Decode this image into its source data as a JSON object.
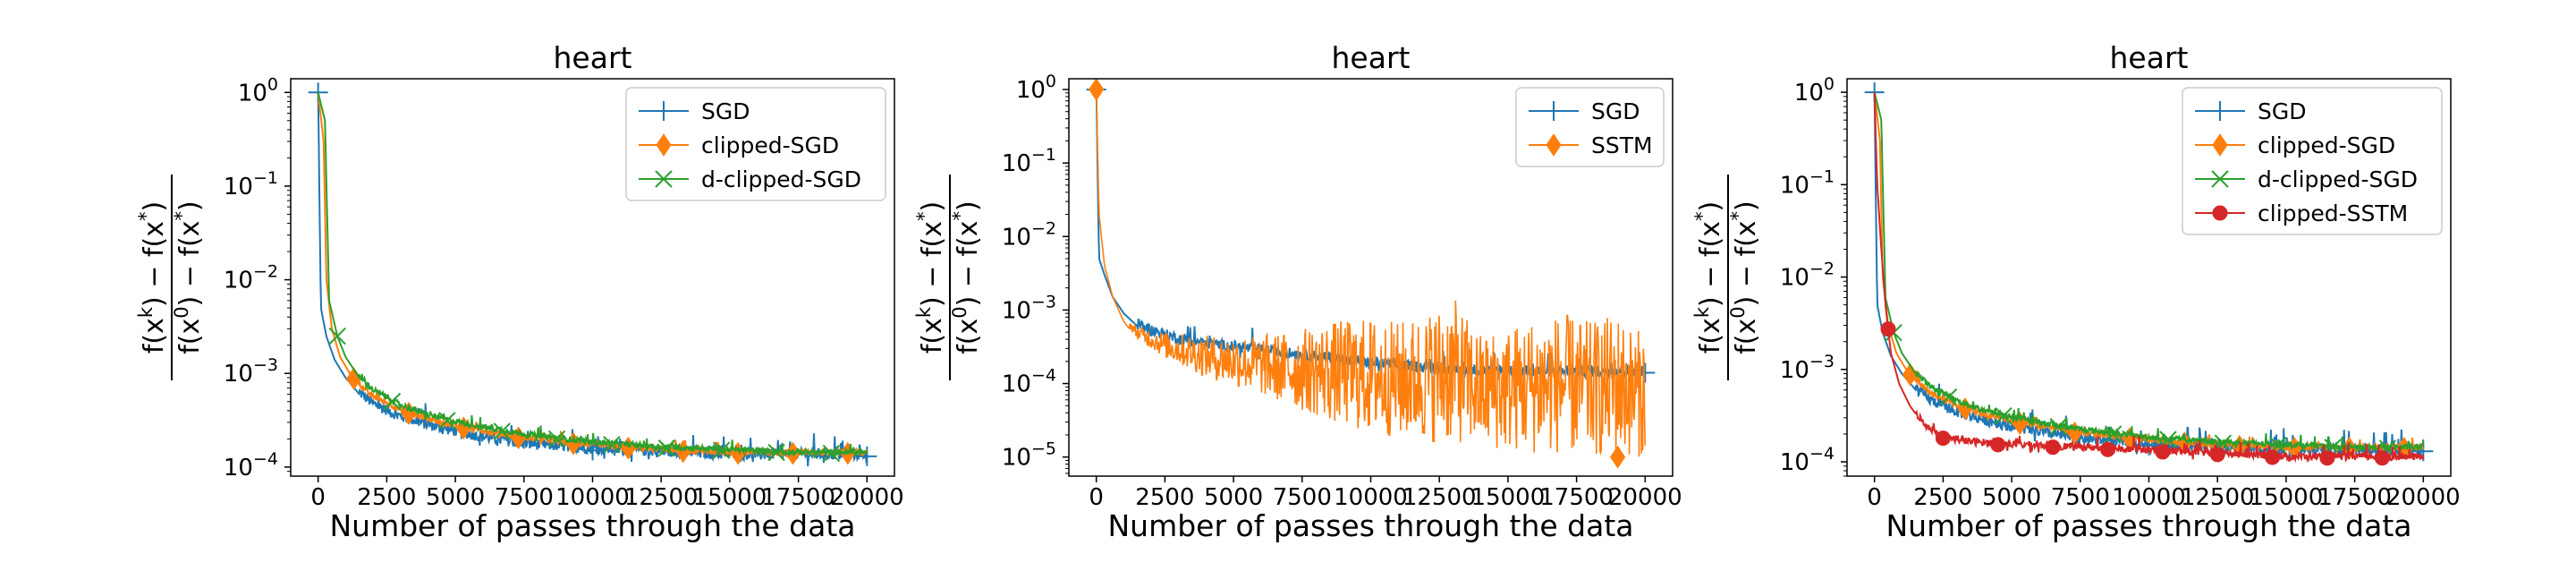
{
  "colors": {
    "SGD": "#1f77b4",
    "clipped-SGD": "#ff7f0e",
    "d-clipped-SGD": "#2ca02c",
    "SSTM": "#ff7f0e",
    "clipped-SSTM": "#d62728"
  },
  "chart_data": [
    {
      "type": "line",
      "title": "heart",
      "xlabel": "Number of passes through the data",
      "ylabel": "(f(x^k) - f(x^*)) / (f(x^0) - f(x^*))",
      "yscale": "log",
      "xlim": [
        -1000,
        21000
      ],
      "ylim": [
        8e-05,
        1.4
      ],
      "xticks": [
        0,
        2500,
        5000,
        7500,
        10000,
        12500,
        15000,
        17500,
        20000
      ],
      "xtick_labels": [
        "0",
        "2500",
        "5000",
        "7500",
        "10000",
        "12500",
        "15000",
        "17500",
        "20000"
      ],
      "yticks": [
        1,
        0.1,
        0.01,
        0.001,
        0.0001
      ],
      "ytick_labels": [
        {
          "base": "10",
          "exp": "0"
        },
        {
          "base": "10",
          "exp": "−1"
        },
        {
          "base": "10",
          "exp": "−2"
        },
        {
          "base": "10",
          "exp": "−3"
        },
        {
          "base": "10",
          "exp": "−4"
        }
      ],
      "legend_position": "top-right",
      "series": [
        {
          "name": "SGD",
          "marker": "plus",
          "noise": 0.12,
          "x": [
            0,
            100,
            300,
            600,
            1000,
            1500,
            2000,
            3000,
            4000,
            5000,
            6000,
            7500,
            10000,
            12500,
            15000,
            17500,
            20000
          ],
          "y": [
            1,
            0.005,
            0.0025,
            0.0014,
            0.0009,
            0.0006,
            0.00045,
            0.00033,
            0.00027,
            0.00023,
            0.0002,
            0.00017,
            0.00015,
            0.00014,
            0.00013,
            0.00013,
            0.00013
          ],
          "markers_x": [
            0,
            10000,
            20000
          ]
        },
        {
          "name": "clipped-SGD",
          "marker": "diamond",
          "noise": 0.06,
          "x": [
            0,
            200,
            300,
            500,
            800,
            1200,
            1600,
            2000,
            3000,
            4000,
            5000,
            6000,
            7500,
            10000,
            12500,
            15000,
            17500,
            20000
          ],
          "y": [
            1,
            0.3,
            0.01,
            0.003,
            0.0015,
            0.00095,
            0.0007,
            0.00055,
            0.0004,
            0.00032,
            0.00027,
            0.00024,
            0.0002,
            0.00017,
            0.00015,
            0.00014,
            0.00014,
            0.00014
          ],
          "markers_x": [
            1300,
            3300,
            5300,
            7300,
            9300,
            11300,
            13300,
            15300,
            17300,
            19300
          ]
        },
        {
          "name": "d-clipped-SGD",
          "marker": "x",
          "noise": 0.06,
          "x": [
            0,
            250,
            400,
            700,
            1000,
            1500,
            2000,
            3000,
            4000,
            5000,
            6000,
            7500,
            10000,
            12500,
            15000,
            17500,
            20000
          ],
          "y": [
            1,
            0.5,
            0.006,
            0.0025,
            0.0015,
            0.0009,
            0.00065,
            0.00045,
            0.00035,
            0.0003,
            0.00026,
            0.00022,
            0.00018,
            0.00016,
            0.00015,
            0.00014,
            0.00014
          ],
          "markers_x": [
            700,
            2700,
            4700,
            6700,
            8700,
            10700,
            12700,
            14700,
            16700,
            18700
          ]
        }
      ]
    },
    {
      "type": "line",
      "title": "heart",
      "xlabel": "Number of passes through the data",
      "ylabel": "(f(x^k) - f(x^*)) / (f(x^0) - f(x^*))",
      "yscale": "log",
      "xlim": [
        -1000,
        21000
      ],
      "ylim": [
        5.5e-06,
        1.4
      ],
      "xticks": [
        0,
        2500,
        5000,
        7500,
        10000,
        12500,
        15000,
        17500,
        20000
      ],
      "xtick_labels": [
        "0",
        "2500",
        "5000",
        "7500",
        "10000",
        "12500",
        "15000",
        "17500",
        "20000"
      ],
      "yticks": [
        1,
        0.1,
        0.01,
        0.001,
        0.0001,
        1e-05
      ],
      "ytick_labels": [
        {
          "base": "10",
          "exp": "0"
        },
        {
          "base": "10",
          "exp": "−1"
        },
        {
          "base": "10",
          "exp": "−2"
        },
        {
          "base": "10",
          "exp": "−3"
        },
        {
          "base": "10",
          "exp": "−4"
        },
        {
          "base": "10",
          "exp": "−5"
        }
      ],
      "legend_position": "top-right",
      "series": [
        {
          "name": "SGD",
          "marker": "plus",
          "noise": 0.15,
          "x": [
            0,
            100,
            300,
            600,
            1000,
            1500,
            2000,
            3000,
            4000,
            5000,
            7500,
            10000,
            12500,
            15000,
            17500,
            20000
          ],
          "y": [
            1,
            0.005,
            0.003,
            0.0015,
            0.0009,
            0.0006,
            0.0005,
            0.00038,
            0.00033,
            0.0003,
            0.00023,
            0.00018,
            0.00015,
            0.00014,
            0.00014,
            0.00014
          ],
          "markers_x": [
            0,
            10000,
            20000
          ]
        },
        {
          "name": "SSTM",
          "marker": "diamond",
          "noise": 0,
          "x": [
            0,
            100,
            300,
            600,
            1000,
            1500,
            2500,
            4000,
            5500,
            7000,
            8500,
            10000,
            11000,
            12000,
            13000,
            13500,
            14000,
            15000,
            16000,
            17000,
            18000,
            19000,
            19500,
            20000
          ],
          "y": [
            1,
            0.02,
            0.004,
            0.0015,
            0.0007,
            0.0004,
            0.00022,
            0.00012,
            8e-05,
            5e-05,
            3e-05,
            2e-05,
            1.8e-05,
            1.6e-05,
            1.5e-05,
            1.5e-05,
            1.3e-05,
            1.2e-05,
            1.1e-05,
            1.1e-05,
            1e-05,
            1e-05,
            1e-05,
            1e-05
          ],
          "upper": [
            1,
            0.02,
            0.004,
            0.0015,
            0.0008,
            0.0006,
            0.0005,
            0.00045,
            0.00045,
            0.0005,
            0.0007,
            0.0008,
            0.0007,
            0.0009,
            0.0015,
            0.0008,
            0.0005,
            0.0006,
            0.0008,
            0.0009,
            0.0007,
            0.0009,
            0.0006,
            0.0005
          ],
          "markers_x": [
            0,
            19000
          ]
        }
      ]
    },
    {
      "type": "line",
      "title": "heart",
      "xlabel": "Number of passes through the data",
      "ylabel": "(f(x^k) - f(x^*)) / (f(x^0) - f(x^*))",
      "yscale": "log",
      "xlim": [
        -1000,
        21000
      ],
      "ylim": [
        7e-05,
        1.4
      ],
      "xticks": [
        0,
        2500,
        5000,
        7500,
        10000,
        12500,
        15000,
        17500,
        20000
      ],
      "xtick_labels": [
        "0",
        "2500",
        "5000",
        "7500",
        "10000",
        "12500",
        "15000",
        "17500",
        "20000"
      ],
      "yticks": [
        1,
        0.1,
        0.01,
        0.001,
        0.0001
      ],
      "ytick_labels": [
        {
          "base": "10",
          "exp": "0"
        },
        {
          "base": "10",
          "exp": "−1"
        },
        {
          "base": "10",
          "exp": "−2"
        },
        {
          "base": "10",
          "exp": "−3"
        },
        {
          "base": "10",
          "exp": "−4"
        }
      ],
      "legend_position": "top-right",
      "series": [
        {
          "name": "SGD",
          "marker": "plus",
          "noise": 0.12,
          "x": [
            0,
            100,
            300,
            600,
            1000,
            1500,
            2000,
            3000,
            4000,
            5000,
            6000,
            7500,
            10000,
            12500,
            15000,
            17500,
            20000
          ],
          "y": [
            1,
            0.005,
            0.0025,
            0.0014,
            0.0009,
            0.0006,
            0.00045,
            0.00033,
            0.00027,
            0.00023,
            0.0002,
            0.00017,
            0.00015,
            0.00014,
            0.00013,
            0.00013,
            0.00013
          ],
          "markers_x": [
            0,
            10000,
            20000
          ]
        },
        {
          "name": "clipped-SGD",
          "marker": "diamond",
          "noise": 0.06,
          "x": [
            0,
            200,
            300,
            500,
            800,
            1200,
            1600,
            2000,
            3000,
            4000,
            5000,
            6000,
            7500,
            10000,
            12500,
            15000,
            17500,
            20000
          ],
          "y": [
            1,
            0.3,
            0.01,
            0.003,
            0.0015,
            0.00095,
            0.0007,
            0.00055,
            0.0004,
            0.00032,
            0.00027,
            0.00024,
            0.0002,
            0.00017,
            0.00015,
            0.00014,
            0.00014,
            0.00014
          ],
          "markers_x": [
            1300,
            3300,
            5300,
            7300,
            9300,
            11300,
            13300,
            15300,
            17300,
            19300
          ]
        },
        {
          "name": "d-clipped-SGD",
          "marker": "x",
          "noise": 0.06,
          "x": [
            0,
            250,
            400,
            700,
            1000,
            1500,
            2000,
            3000,
            4000,
            5000,
            6000,
            7500,
            10000,
            12500,
            15000,
            17500,
            20000
          ],
          "y": [
            1,
            0.5,
            0.006,
            0.0025,
            0.0015,
            0.0009,
            0.00065,
            0.00045,
            0.00035,
            0.0003,
            0.00026,
            0.00022,
            0.00018,
            0.00016,
            0.00015,
            0.00014,
            0.00014
          ],
          "markers_x": [
            700,
            2700,
            4700,
            6700,
            8700,
            10700,
            12700,
            14700,
            16700,
            18700
          ]
        },
        {
          "name": "clipped-SSTM",
          "marker": "circle",
          "noise": 0.08,
          "x": [
            0,
            100,
            250,
            400,
            600,
            900,
            1300,
            1800,
            2500,
            3500,
            5000,
            7500,
            10000,
            12500,
            15000,
            17500,
            20000
          ],
          "y": [
            1,
            0.1,
            0.02,
            0.005,
            0.0015,
            0.0007,
            0.0004,
            0.00025,
            0.00018,
            0.00016,
            0.00015,
            0.00014,
            0.00013,
            0.00012,
            0.00011,
            0.00011,
            0.00011
          ],
          "markers_x": [
            500,
            2500,
            4500,
            6500,
            8500,
            10500,
            12500,
            14500,
            16500,
            18500
          ]
        }
      ]
    }
  ]
}
